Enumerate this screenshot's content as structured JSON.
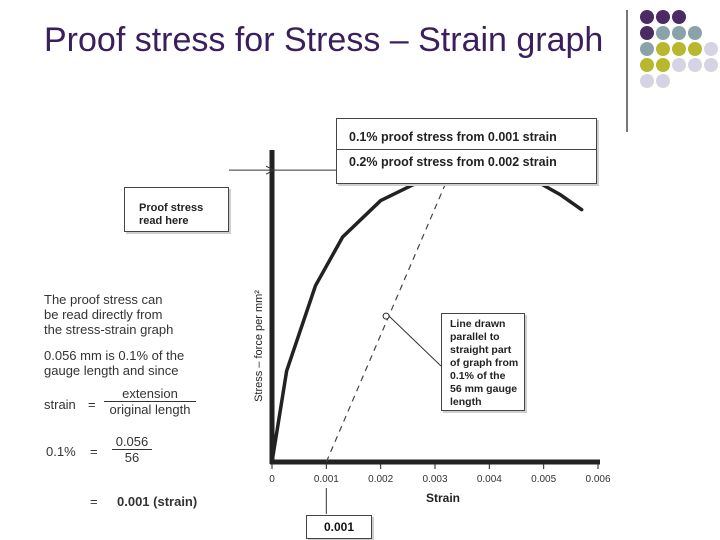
{
  "slide": {
    "title": "Proof stress for Stress – Strain graph"
  },
  "decor": {
    "dot_colors": {
      "purple": "#4b2b63",
      "teal": "#8aa3a8",
      "olive": "#b8b82e",
      "lavender": "#d6d3e3"
    },
    "grid": [
      [
        "purple",
        "purple",
        "purple",
        "",
        ""
      ],
      [
        "purple",
        "teal",
        "teal",
        "teal",
        ""
      ],
      [
        "teal",
        "olive",
        "olive",
        "olive",
        "lavender"
      ],
      [
        "olive",
        "olive",
        "lavender",
        "lavender",
        "lavender"
      ],
      [
        "lavender",
        "lavender",
        "",
        "",
        ""
      ]
    ]
  },
  "callouts": {
    "proof_stress_label": "Proof stress read here",
    "proof_line1": "0.1% proof stress from 0.001 strain",
    "proof_line2": "0.2% proof stress from 0.002 strain",
    "line_drawn": [
      "Line drawn",
      "parallel to",
      "straight part",
      "of graph from",
      "0.1% of the",
      "56 mm gauge",
      "length"
    ]
  },
  "explanation": {
    "para1": [
      "The proof stress can",
      "be read directly from",
      "the stress-strain graph"
    ],
    "para2": [
      "0.056 mm is 0.1% of the",
      "gauge length and since"
    ],
    "strain_label": "strain",
    "equals": "=",
    "strain_num": "extension",
    "strain_den": "original length",
    "pct_label": "0.1%",
    "pct_num": "0.056",
    "pct_den": "56",
    "result": "0.001 (strain)",
    "result_box": "0.001"
  },
  "chart_data": {
    "type": "line",
    "xlabel": "Strain",
    "ylabel": "Stress – force per mm²",
    "x_ticks": [
      "0",
      "0.001",
      "0.002",
      "0.003",
      "0.004",
      "0.005",
      "0.006"
    ],
    "xlim": [
      0,
      0.006
    ],
    "ylim": [
      0,
      1
    ],
    "series": [
      {
        "style": "solid",
        "x": [
          0,
          0.00027,
          0.0008,
          0.0013,
          0.002,
          0.0028,
          0.0035,
          0.0042,
          0.0048,
          0.0053,
          0.0057
        ],
        "y": [
          0,
          0.3,
          0.58,
          0.74,
          0.86,
          0.93,
          0.96,
          0.96,
          0.93,
          0.88,
          0.83
        ]
      },
      {
        "style": "dashed",
        "x": [
          0.001,
          0.0033
        ],
        "y": [
          0,
          0.96
        ]
      }
    ],
    "annotations": {
      "proof_stress_level": 0.96,
      "marker": {
        "x": 0.0021,
        "y": 0.48
      }
    }
  }
}
